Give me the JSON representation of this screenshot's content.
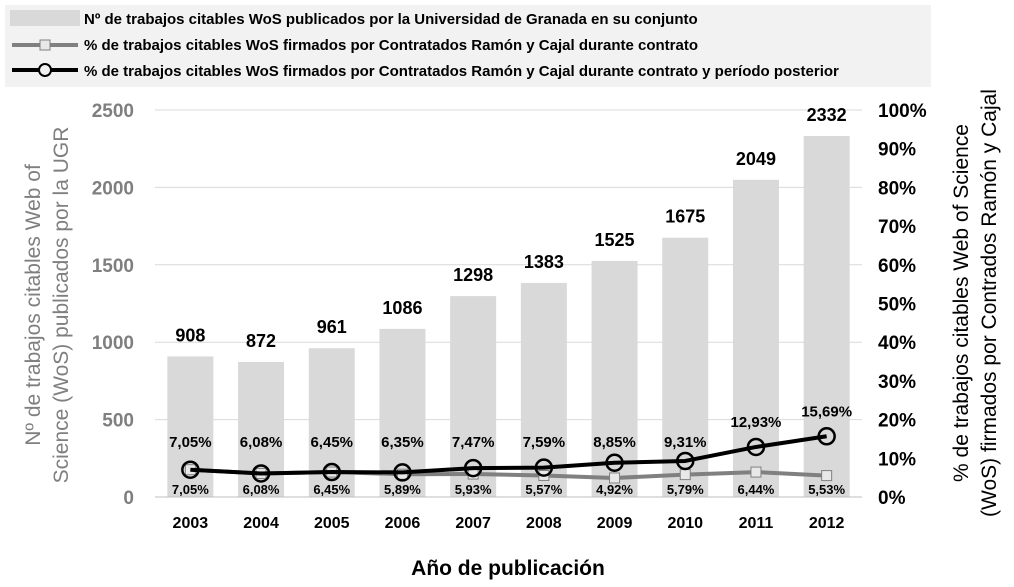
{
  "chart_data": {
    "type": "bar",
    "categories": [
      "2003",
      "2004",
      "2005",
      "2006",
      "2007",
      "2008",
      "2009",
      "2010",
      "2011",
      "2012"
    ],
    "xlabel": "Año de publicación",
    "ylabel": "Nº de trabajos citables Web of Science (WoS) publicados por la UGR",
    "ylabel_lines": [
      "Nº de trabajos citables Web of",
      "Science (WoS) publicados por la UGR"
    ],
    "y2label": "% de trabajos citables Web of Science (WoS) firmados por Contrados Ramón y Cajal",
    "y2label_lines": [
      "% de trabajos citables Web of Science",
      "(WoS) firmados por Contrados Ramón y Cajal"
    ],
    "ylim": [
      0,
      2500
    ],
    "yticks": [
      "0",
      "500",
      "1000",
      "1500",
      "2000",
      "2500"
    ],
    "y2lim": [
      0,
      100
    ],
    "y2ticks": [
      "0%",
      "10%",
      "20%",
      "30%",
      "40%",
      "50%",
      "60%",
      "70%",
      "80%",
      "90%",
      "100%"
    ],
    "legend_position": "top",
    "grid": "horizontal",
    "series": [
      {
        "name": "Nº de trabajos citables WoS publicados por la Universidad de Granada en su conjunto",
        "kind": "bar",
        "axis": "left",
        "color": "#d9d9d9",
        "values": [
          908,
          872,
          961,
          1086,
          1298,
          1383,
          1525,
          1675,
          2049,
          2332
        ],
        "labels": [
          "908",
          "872",
          "961",
          "1086",
          "1298",
          "1383",
          "1525",
          "1675",
          "2049",
          "2332"
        ]
      },
      {
        "name": "% de trabajos citables WoS firmados por Contratados Ramón y Cajal durante contrato",
        "kind": "line",
        "axis": "right",
        "color": "#808080",
        "marker": "square",
        "values": [
          7.05,
          6.08,
          6.45,
          5.89,
          5.93,
          5.57,
          4.92,
          5.79,
          6.44,
          5.53
        ],
        "labels": [
          "7,05%",
          "6,08%",
          "6,45%",
          "5,89%",
          "5,93%",
          "5,57%",
          "4,92%",
          "5,79%",
          "6,44%",
          "5,53%"
        ]
      },
      {
        "name": "% de trabajos citables WoS firmados por Contratados Ramón y Cajal durante contrato y período posterior",
        "kind": "line",
        "axis": "right",
        "color": "#000000",
        "marker": "circle",
        "values": [
          7.05,
          6.08,
          6.45,
          6.35,
          7.47,
          7.59,
          8.85,
          9.31,
          12.93,
          15.69
        ],
        "labels": [
          "7,05%",
          "6,08%",
          "6,45%",
          "6,35%",
          "7,47%",
          "7,59%",
          "8,85%",
          "9,31%",
          "12,93%",
          "15,69%"
        ]
      }
    ]
  }
}
